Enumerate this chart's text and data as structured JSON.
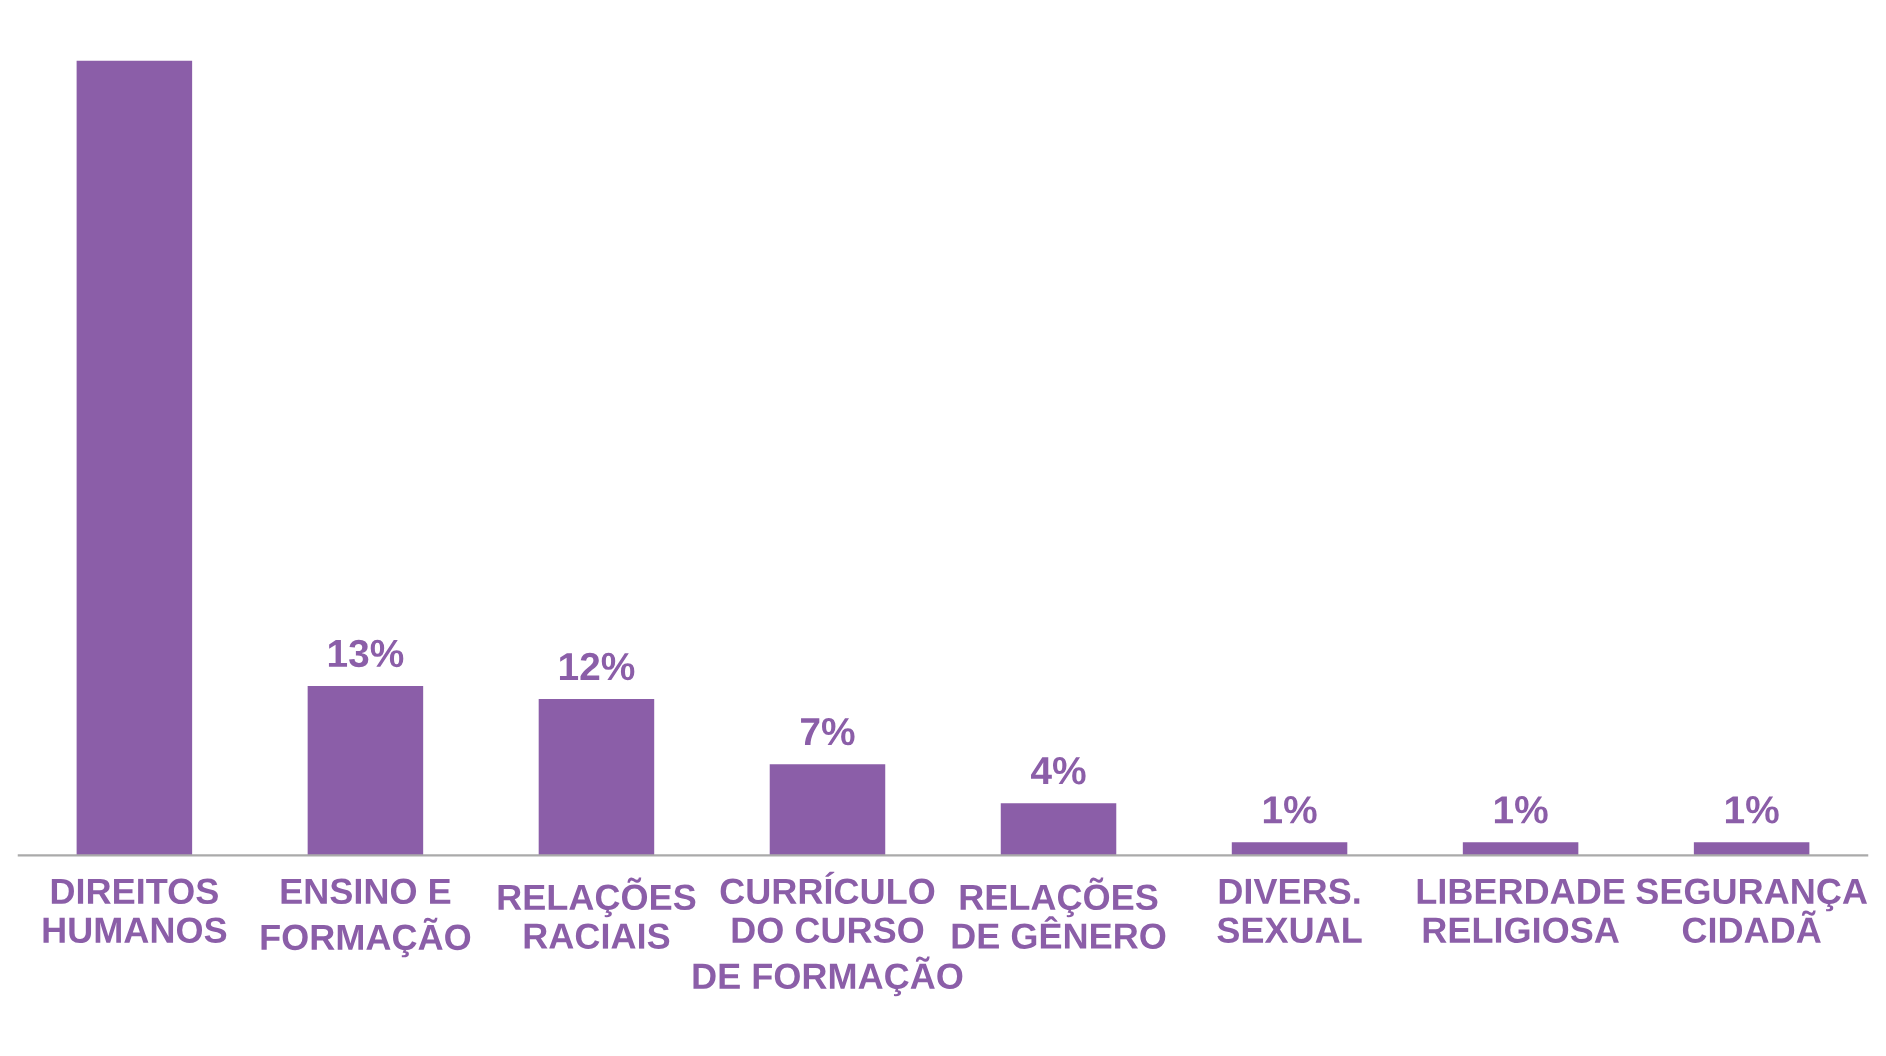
{
  "chart_data": {
    "type": "bar",
    "categories": [
      "DIREITOS\nHUMANOS",
      "ENSINO E\nFORMAÇÃO",
      "RELAÇÕES\nRACIAIS",
      "CURRÍCULO\nDO CURSO\nDE FORMAÇÃO",
      "RELAÇÕES\nDE GÊNERO",
      "DIVERS.\nSEXUAL",
      "LIBERDADE\nRELIGIOSA",
      "SEGURANÇA\nCIDADÃ"
    ],
    "values": [
      61,
      13,
      12,
      7,
      4,
      1,
      1,
      1
    ],
    "value_labels": [
      null,
      "13%",
      "12%",
      "7%",
      "4%",
      "1%",
      "1%",
      "1%"
    ],
    "color": "#8b5ea8",
    "grid": false,
    "legend": false
  }
}
